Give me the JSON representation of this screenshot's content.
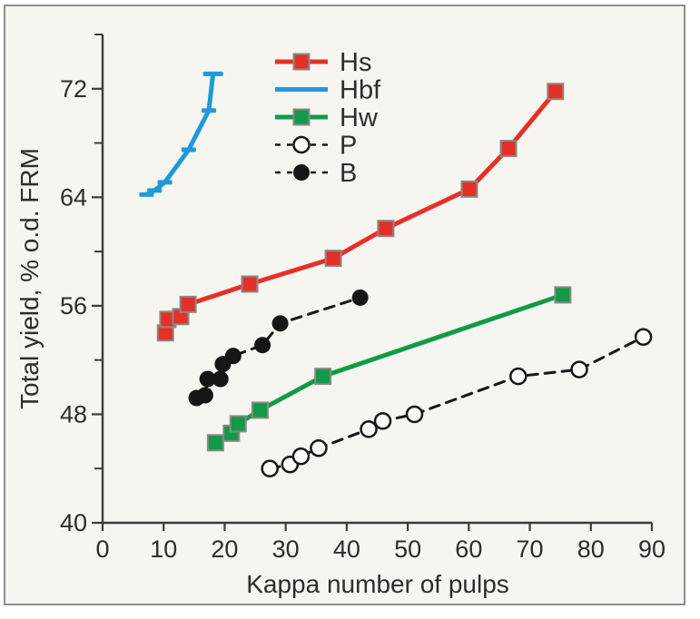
{
  "figure": {
    "background": "#f6f5f0",
    "frame_border": "#8f8f8b",
    "axis_color": "#3b3b3b",
    "text_color": "#2d2d2d"
  },
  "chart_data": {
    "type": "line",
    "title": "",
    "xlabel": "Kappa number of pulps",
    "ylabel": "Total yield, % o.d. FRM",
    "xlim": [
      0,
      90
    ],
    "ylim": [
      40,
      76
    ],
    "x_ticks": [
      0,
      10,
      20,
      30,
      40,
      50,
      60,
      70,
      80,
      90
    ],
    "y_major_ticks": [
      40,
      48,
      56,
      64,
      72
    ],
    "y_minor_ticks": [
      44,
      52,
      60,
      68,
      76
    ],
    "grid": false,
    "legend_position": "upper-left-inside",
    "series": [
      {
        "name": "Hbf",
        "color": "#1e9bd7",
        "line_style": "solid",
        "marker": "dash",
        "points": [
          [
            7.2,
            64.2
          ],
          [
            8.5,
            64.5
          ],
          [
            10.2,
            65.1
          ],
          [
            14.1,
            67.5
          ],
          [
            17.4,
            70.4
          ],
          [
            18.1,
            73.1
          ]
        ]
      },
      {
        "name": "Hs",
        "color": "#e53028",
        "line_style": "solid",
        "marker": "square",
        "points": [
          [
            10.3,
            54.0
          ],
          [
            10.7,
            55.0
          ],
          [
            12.8,
            55.2
          ],
          [
            14.0,
            56.1
          ],
          [
            24.1,
            57.6
          ],
          [
            37.8,
            59.5
          ],
          [
            46.4,
            61.7
          ],
          [
            60.1,
            64.6
          ],
          [
            66.5,
            67.6
          ],
          [
            74.2,
            71.8
          ]
        ]
      },
      {
        "name": "Hw",
        "color": "#119a49",
        "line_style": "solid",
        "marker": "square",
        "points": [
          [
            18.5,
            45.9
          ],
          [
            21.1,
            46.6
          ],
          [
            22.2,
            47.3
          ],
          [
            25.8,
            48.3
          ],
          [
            36.1,
            50.8
          ],
          [
            75.4,
            56.8
          ]
        ]
      },
      {
        "name": "B",
        "color": "#161616",
        "line_style": "dashed",
        "marker": "circle-filled",
        "points": [
          [
            15.4,
            49.2
          ],
          [
            16.8,
            49.4
          ],
          [
            17.2,
            50.6
          ],
          [
            19.3,
            50.6
          ],
          [
            19.7,
            51.7
          ],
          [
            21.4,
            52.3
          ],
          [
            26.2,
            53.1
          ],
          [
            29.1,
            54.7
          ],
          [
            42.2,
            56.6
          ]
        ]
      },
      {
        "name": "P",
        "color": "#161616",
        "line_style": "dashed",
        "marker": "circle-open",
        "points": [
          [
            27.4,
            44.0
          ],
          [
            30.7,
            44.3
          ],
          [
            32.5,
            44.9
          ],
          [
            35.4,
            45.5
          ],
          [
            43.6,
            46.9
          ],
          [
            45.9,
            47.5
          ],
          [
            51.1,
            48.0
          ],
          [
            68.1,
            50.8
          ],
          [
            78.1,
            51.3
          ],
          [
            88.6,
            53.7
          ]
        ]
      }
    ],
    "legend_order": [
      "Hs",
      "Hbf",
      "Hw",
      "P",
      "B"
    ]
  }
}
